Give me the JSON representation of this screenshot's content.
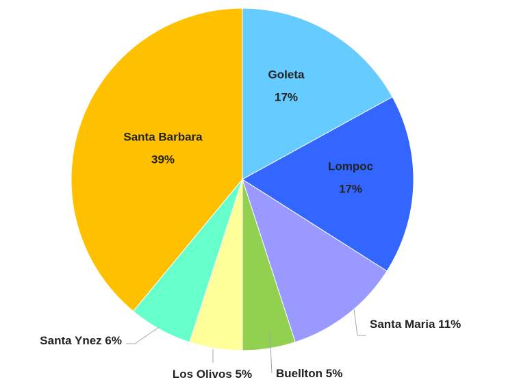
{
  "chart_data": {
    "type": "pie",
    "categories": [
      "Goleta",
      "Lompoc",
      "Santa Maria",
      "Buellton",
      "Los Olivos",
      "Santa Ynez",
      "Santa Barbara"
    ],
    "values": [
      17,
      17,
      11,
      5,
      5,
      6,
      39
    ],
    "value_labels": [
      "17%",
      "17%",
      "11%",
      "5%",
      "5%",
      "6%",
      "39%"
    ],
    "colors": [
      "#66ccff",
      "#3366ff",
      "#9999ff",
      "#92d050",
      "#ffff99",
      "#66ffcc",
      "#ffc000"
    ]
  }
}
